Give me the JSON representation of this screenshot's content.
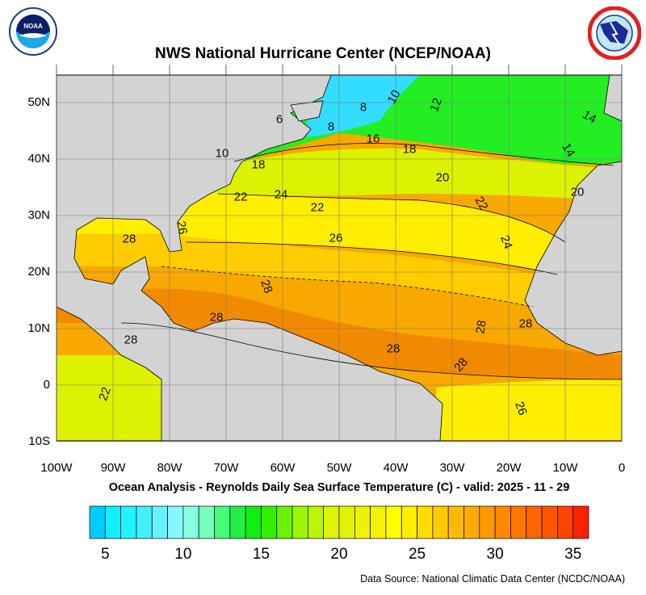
{
  "header": {
    "title": "NWS National Hurricane Center (NCEP/NOAA)",
    "logo_left": "NOAA",
    "logo_right": "NATIONAL WEATHER SERVICE"
  },
  "map": {
    "lon_ticks": [
      "100W",
      "90W",
      "80W",
      "70W",
      "60W",
      "50W",
      "40W",
      "30W",
      "20W",
      "10W",
      "0"
    ],
    "lat_ticks": [
      "50N",
      "40N",
      "30N",
      "20N",
      "10N",
      "0",
      "10S"
    ],
    "contour_labels": [
      "10",
      "12",
      "14",
      "8",
      "8",
      "6",
      "16",
      "18",
      "10",
      "18",
      "20",
      "22",
      "22",
      "24",
      "22",
      "20",
      "26",
      "26",
      "24",
      "28",
      "28",
      "28",
      "28",
      "28",
      "28",
      "28",
      "28",
      "22",
      "26",
      "14"
    ],
    "colors": {
      "land": "#d3d3d3",
      "cyan": "#33ddff",
      "green": "#22ee22",
      "yellowgreen": "#ddf200",
      "yellow": "#ffee00",
      "gold": "#ffcc00",
      "orange": "#f9a800",
      "darkorange": "#f28a00"
    }
  },
  "footer": {
    "subtitle": "Ocean Analysis - Reynolds Daily Sea Surface Temperature (C) - valid: 2025 - 11 - 29",
    "source": "Data Source: National Climatic Data Center (NCDC/NOAA)"
  },
  "colorbar": {
    "min": 4,
    "max": 36,
    "step": 1,
    "labels": [
      "5",
      "10",
      "15",
      "20",
      "25",
      "30",
      "35"
    ],
    "colors": [
      "#00ccff",
      "#11eeff",
      "#22f4ff",
      "#44f0ff",
      "#66f4ff",
      "#88f8ff",
      "#88ffe0",
      "#77ffbb",
      "#44ff77",
      "#22ee44",
      "#11ee11",
      "#33f000",
      "#66f400",
      "#99f800",
      "#bbf400",
      "#ddf400",
      "#e4f400",
      "#eef400",
      "#f4f400",
      "#ffff00",
      "#ffee00",
      "#ffdd00",
      "#ffcc00",
      "#ffbb00",
      "#ffaa00",
      "#ff9900",
      "#ff8800",
      "#ff7700",
      "#ff6600",
      "#ff5500",
      "#ff4400",
      "#ff2200"
    ]
  }
}
